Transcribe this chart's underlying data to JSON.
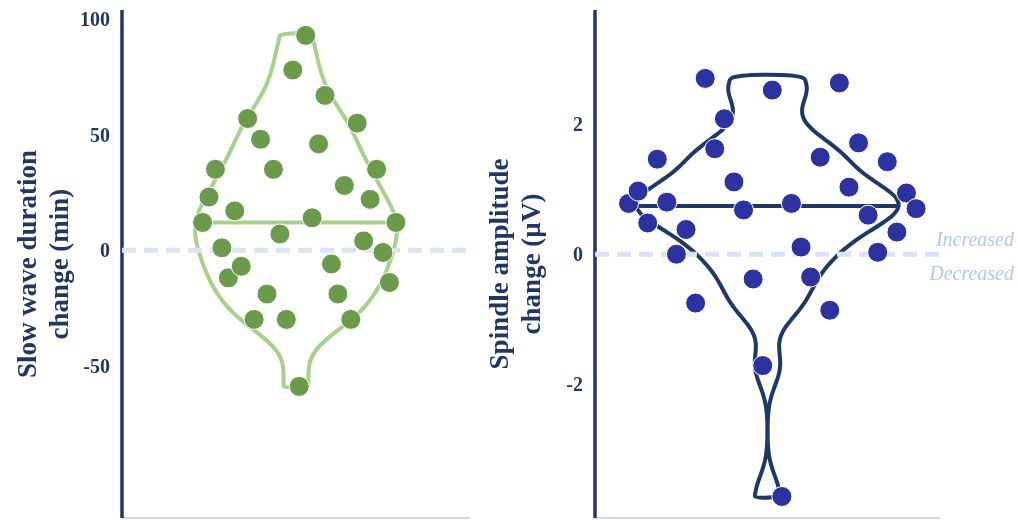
{
  "chart_data": [
    {
      "type": "scatter",
      "ylabel": "Slow wave duration change (min)",
      "categories": [
        null,
        null,
        null,
        null,
        null,
        null,
        null,
        null,
        null,
        null,
        null,
        null,
        null,
        null,
        null,
        null,
        null,
        null,
        null,
        null,
        null,
        null,
        null,
        null,
        null,
        null,
        null,
        null,
        null,
        null,
        null,
        null,
        null,
        null,
        null,
        null,
        null,
        null,
        null,
        null,
        null,
        null,
        null,
        null,
        null,
        null,
        null,
        null,
        null,
        null,
        null,
        null,
        null,
        null
      ],
      "ylim": [
        -116,
        104
      ],
      "yticks": [
        -50,
        0,
        50,
        100
      ],
      "grid": false,
      "marker": "circle",
      "series": [
        {
          "color": "#6a9a4a",
          "values": [
            null,
            null,
            null,
            null,
            null,
            null,
            null,
            null,
            null,
            null,
            null,
            null,
            12,
            23,
            35,
            1,
            -12,
            17,
            -7,
            57,
            -30,
            48,
            -19,
            35,
            7,
            -30,
            78,
            -59,
            93,
            14,
            46,
            67,
            -6,
            -19,
            28,
            -30,
            55,
            4,
            22,
            35,
            -1,
            -14,
            12,
            null,
            null,
            null,
            null,
            null,
            null,
            null,
            null,
            null,
            null,
            null
          ]
        }
      ],
      "ref_lines": [
        {
          "axis": "y",
          "value": 12,
          "color": "#a8d08d",
          "line_style": "solid"
        },
        {
          "axis": "y",
          "value": 0,
          "color": "#dae3f3",
          "line_style": "dashed"
        }
      ]
    },
    {
      "type": "scatter",
      "ylabel": "Spindle amplitude change (µV)",
      "categories": [
        null,
        null,
        null,
        null,
        null,
        null,
        null,
        null,
        null,
        null,
        null,
        null,
        null,
        null,
        null,
        null,
        null,
        null,
        null,
        null,
        null,
        null,
        null,
        null,
        null,
        null,
        null,
        null,
        null,
        null,
        null,
        null,
        null,
        null,
        null,
        null
      ],
      "ylim": [
        -4.05,
        3.75
      ],
      "yticks": [
        -2,
        0,
        2
      ],
      "grid": false,
      "marker": "circle",
      "series": [
        {
          "color": "#2e31a0",
          "values": [
            null,
            null,
            null,
            0.78,
            0.97,
            0.48,
            1.46,
            0.8,
            0,
            0.38,
            -0.75,
            2.7,
            1.62,
            2.08,
            1.11,
            0.68,
            -0.38,
            -1.71,
            2.52,
            -3.72,
            0.78,
            0.11,
            -0.35,
            1.49,
            -0.86,
            2.63,
            1.03,
            1.71,
            0.6,
            0.03,
            1.42,
            0.34,
            0.94,
            0.7,
            null,
            null
          ]
        }
      ],
      "ref_lines": [
        {
          "axis": "y",
          "value": 0.74,
          "color": "#1f3864",
          "line_style": "solid"
        },
        {
          "axis": "y",
          "value": 0,
          "color": "#dae3f3",
          "line_style": "dashed"
        }
      ],
      "annotations": [
        "Increased",
        "Decreased"
      ]
    }
  ]
}
